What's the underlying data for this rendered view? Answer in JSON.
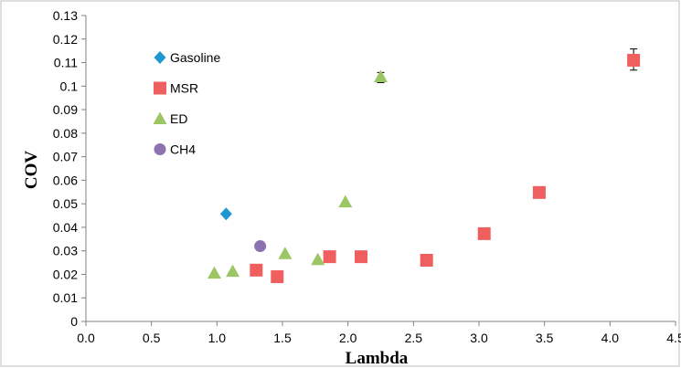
{
  "chart_data": {
    "type": "scatter",
    "title": "",
    "xlabel": "Lambda",
    "ylabel": "COV",
    "xlim": [
      0,
      4.5
    ],
    "ylim": [
      0,
      0.13
    ],
    "xticks": [
      "0.0",
      "0.5",
      "1.0",
      "1.5",
      "2.0",
      "2.5",
      "3.0",
      "3.5",
      "4.0",
      "4.5"
    ],
    "yticks": [
      "0",
      "0.01",
      "0.02",
      "0.03",
      "0.04",
      "0.05",
      "0.06",
      "0.07",
      "0.08",
      "0.09",
      "0.1",
      "0.11",
      "0.12",
      "0.13"
    ],
    "grid": "none",
    "legend_position": "top-left",
    "series": [
      {
        "name": "Gasoline",
        "marker": "diamond",
        "color": "#1f97d1",
        "points": [
          [
            1.07,
            0.0457
          ]
        ]
      },
      {
        "name": "MSR",
        "marker": "square",
        "color": "#f05f5f",
        "points": [
          [
            1.3,
            0.0218
          ],
          [
            1.46,
            0.019
          ],
          [
            1.86,
            0.0275
          ],
          [
            2.1,
            0.0275
          ],
          [
            2.6,
            0.026
          ],
          [
            3.04,
            0.0373
          ],
          [
            3.46,
            0.0548
          ],
          [
            4.18,
            0.111
          ]
        ],
        "error_bars": [
          {
            "x": 4.18,
            "y": 0.111,
            "low": 0.1068,
            "high": 0.1158
          }
        ]
      },
      {
        "name": "ED",
        "marker": "triangle",
        "color": "#9bc663",
        "points": [
          [
            0.98,
            0.0205
          ],
          [
            1.12,
            0.0213
          ],
          [
            1.52,
            0.0288
          ],
          [
            1.77,
            0.0263
          ],
          [
            1.98,
            0.0508
          ],
          [
            2.25,
            0.104
          ]
        ],
        "error_bars": [
          {
            "x": 2.25,
            "y": 0.104,
            "low": 0.1015,
            "high": 0.1058
          }
        ]
      },
      {
        "name": "CH4",
        "marker": "circle",
        "color": "#8e72b0",
        "points": [
          [
            1.33,
            0.032
          ]
        ]
      }
    ]
  }
}
